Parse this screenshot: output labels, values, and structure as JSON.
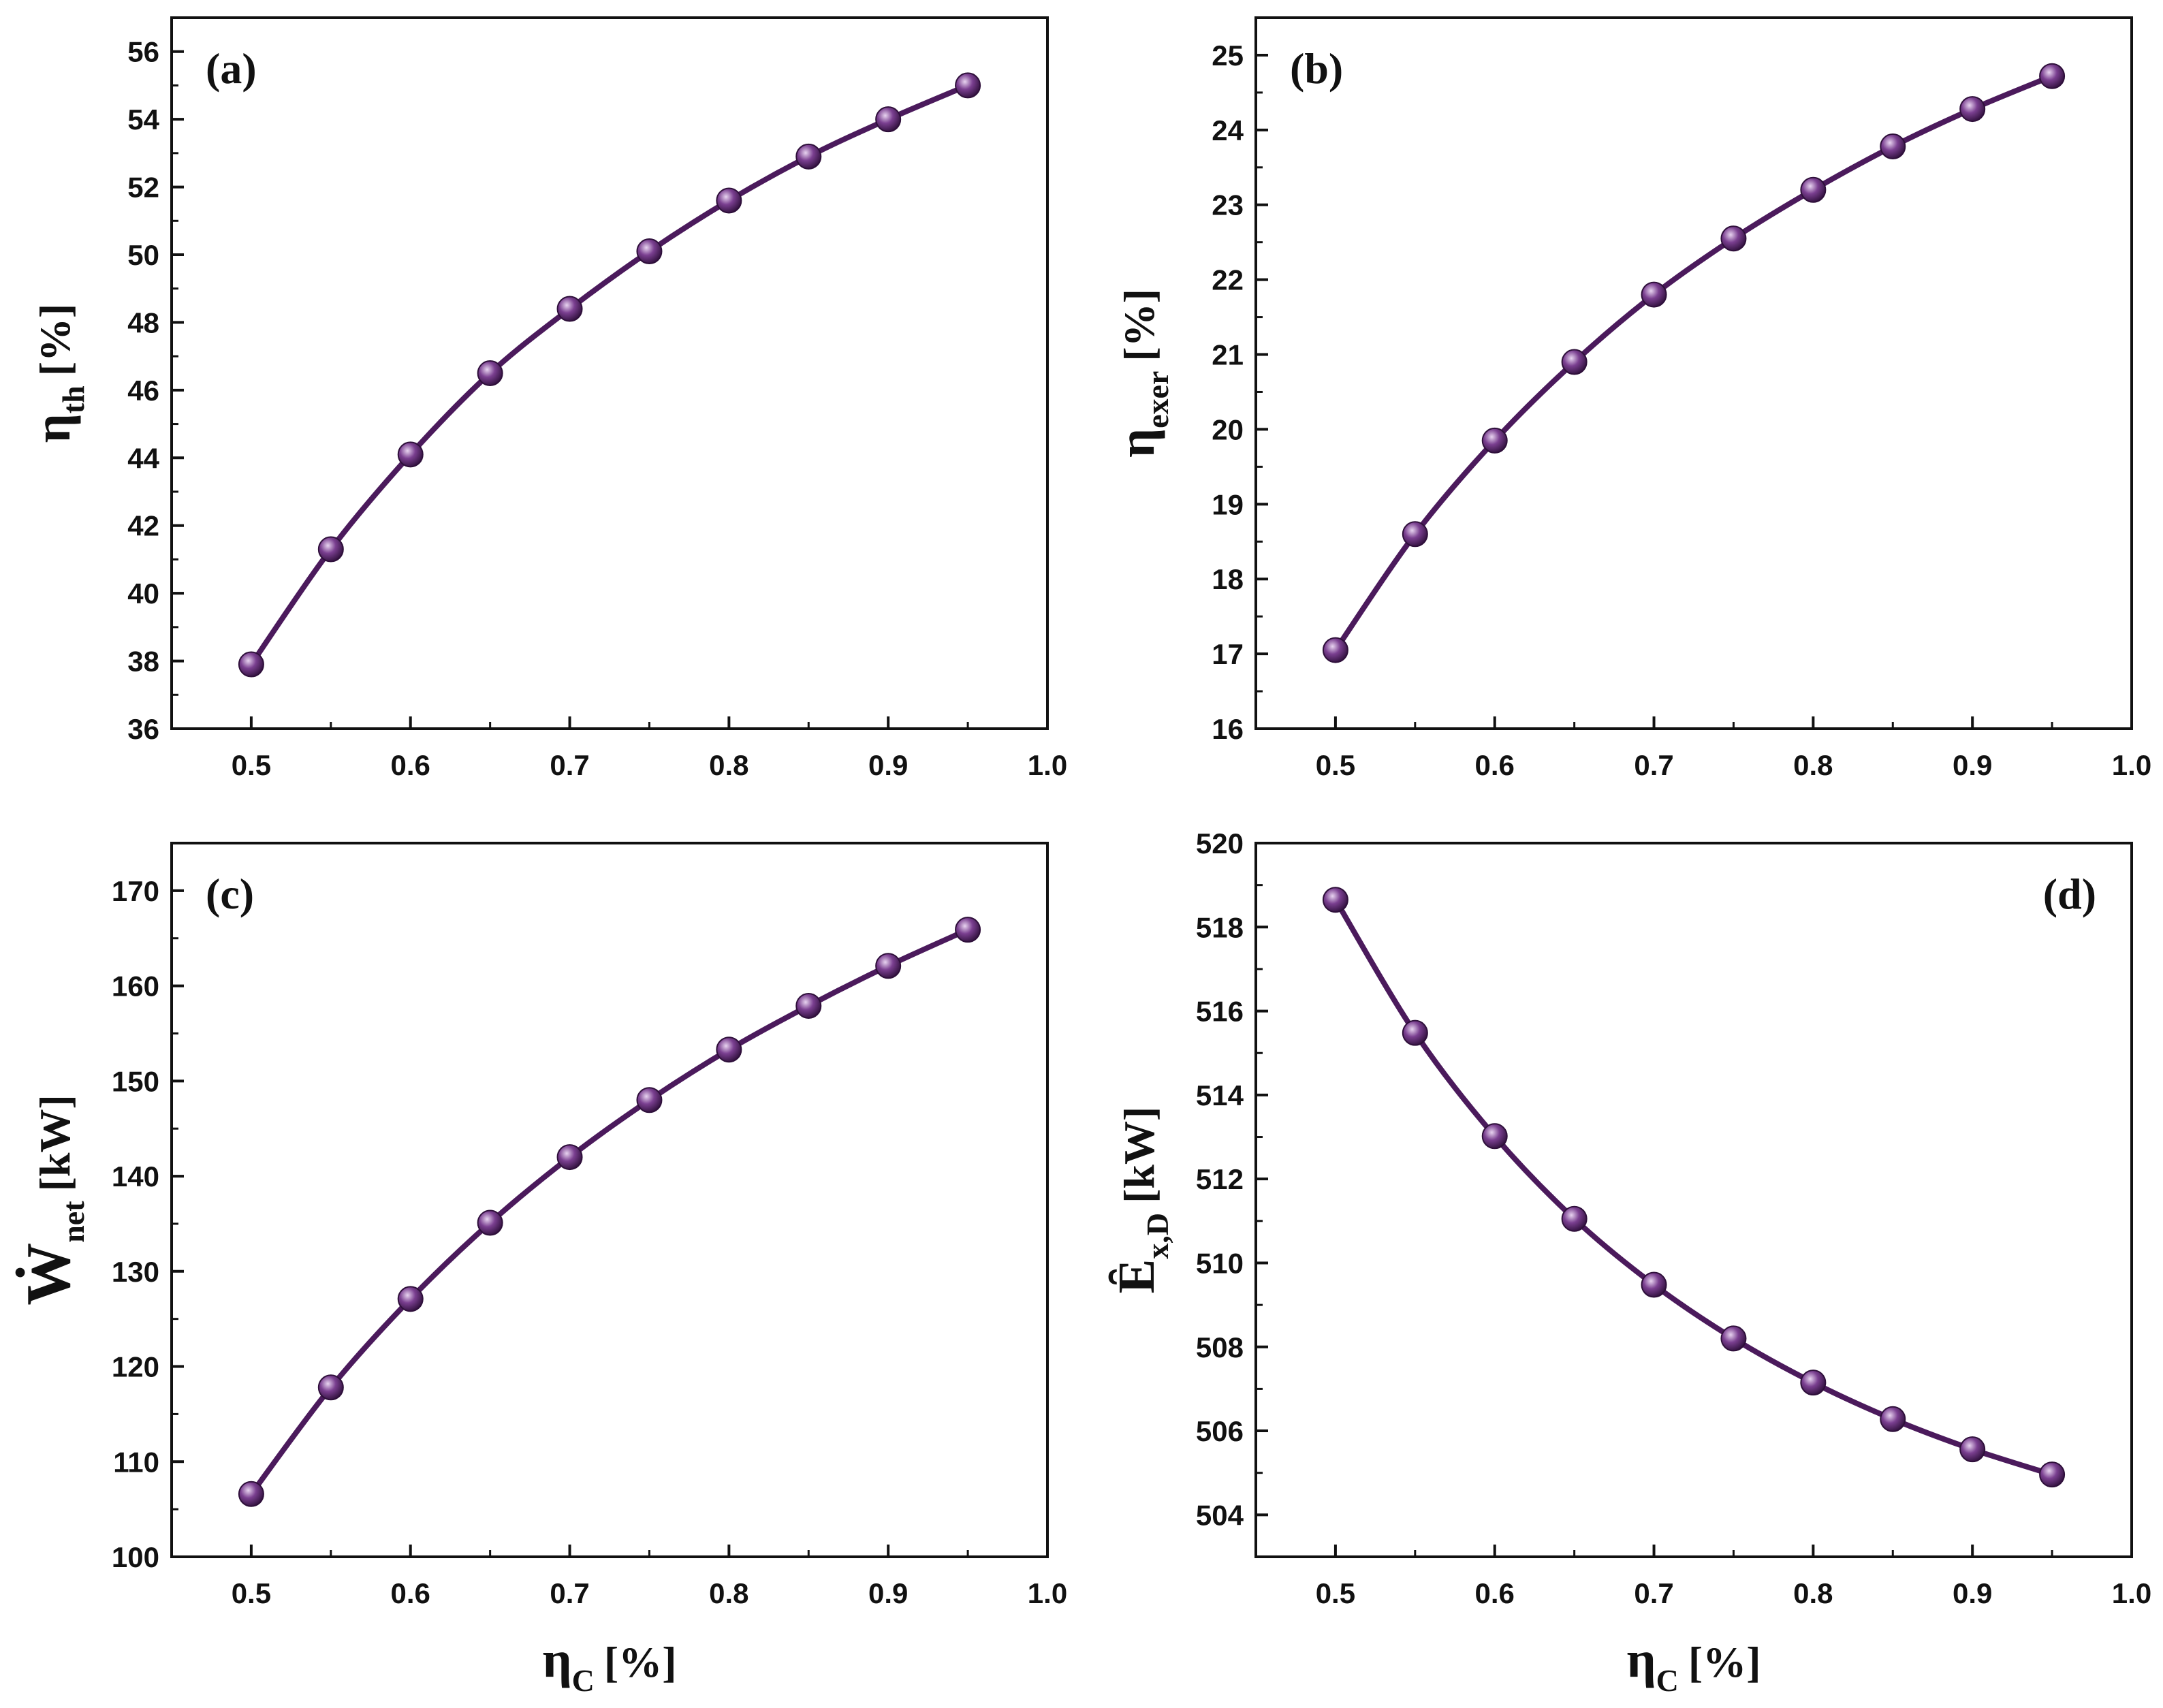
{
  "chart_data": [
    {
      "type": "line",
      "panel_label": "(a)",
      "ylabel": {
        "main": "η",
        "sub": "th",
        "unit": "[%]"
      },
      "xlabel": null,
      "xlim": [
        0.45,
        1.0
      ],
      "ylim": [
        36,
        57
      ],
      "xticks": [
        0.5,
        0.6,
        0.7,
        0.8,
        0.9,
        1.0
      ],
      "yticks": [
        36,
        38,
        40,
        42,
        44,
        46,
        48,
        50,
        52,
        54,
        56
      ],
      "x": [
        0.5,
        0.55,
        0.6,
        0.65,
        0.7,
        0.75,
        0.8,
        0.85,
        0.9,
        0.95
      ],
      "y": [
        37.9,
        41.3,
        44.1,
        46.5,
        48.4,
        50.1,
        51.6,
        52.9,
        54.0,
        55.0
      ],
      "label_position": "top-left"
    },
    {
      "type": "line",
      "panel_label": "(b)",
      "ylabel": {
        "main": "η",
        "sub": "exer",
        "unit": "[%]"
      },
      "xlabel": null,
      "xlim": [
        0.45,
        1.0
      ],
      "ylim": [
        16,
        25.5
      ],
      "xticks": [
        0.5,
        0.6,
        0.7,
        0.8,
        0.9,
        1.0
      ],
      "yticks": [
        16,
        17,
        18,
        19,
        20,
        21,
        22,
        23,
        24,
        25
      ],
      "x": [
        0.5,
        0.55,
        0.6,
        0.65,
        0.7,
        0.75,
        0.8,
        0.85,
        0.9,
        0.95
      ],
      "y": [
        17.05,
        18.6,
        19.85,
        20.9,
        21.8,
        22.55,
        23.2,
        23.78,
        24.28,
        24.72
      ],
      "label_position": "top-left"
    },
    {
      "type": "line",
      "panel_label": "(c)",
      "ylabel": {
        "main": "Ẇ",
        "sub": "net",
        "unit": "[kW]"
      },
      "xlabel": null,
      "xlim": [
        0.45,
        1.0
      ],
      "ylim": [
        100,
        175
      ],
      "xticks": [
        0.5,
        0.6,
        0.7,
        0.8,
        0.9,
        1.0
      ],
      "yticks": [
        100,
        110,
        120,
        130,
        140,
        150,
        160,
        170
      ],
      "x": [
        0.5,
        0.55,
        0.6,
        0.65,
        0.7,
        0.75,
        0.8,
        0.85,
        0.9,
        0.95
      ],
      "y": [
        106.6,
        117.8,
        127.1,
        135.1,
        142.0,
        148.0,
        153.3,
        157.9,
        162.1,
        165.9
      ],
      "label_position": "top-left"
    },
    {
      "type": "line",
      "panel_label": "(d)",
      "ylabel": {
        "main": "Ȇ",
        "sub": "x,D",
        "unit": "[kW]"
      },
      "xlabel": null,
      "xlim": [
        0.45,
        1.0
      ],
      "ylim": [
        503,
        520
      ],
      "xticks": [
        0.5,
        0.6,
        0.7,
        0.8,
        0.9,
        1.0
      ],
      "yticks": [
        504,
        506,
        508,
        510,
        512,
        514,
        516,
        518,
        520
      ],
      "x": [
        0.5,
        0.55,
        0.6,
        0.65,
        0.7,
        0.75,
        0.8,
        0.85,
        0.9,
        0.95
      ],
      "y": [
        518.65,
        515.48,
        513.02,
        511.05,
        509.48,
        508.2,
        507.15,
        506.28,
        505.56,
        504.96
      ],
      "label_position": "top-right"
    }
  ],
  "shared_xlabel": {
    "main": "η",
    "sub": "C",
    "unit": "[%]"
  },
  "colors": {
    "series": "#4b1a5c",
    "marker_light": "#e8d4f0",
    "marker_dark": "#2e0f3a",
    "axis": "#111111"
  }
}
